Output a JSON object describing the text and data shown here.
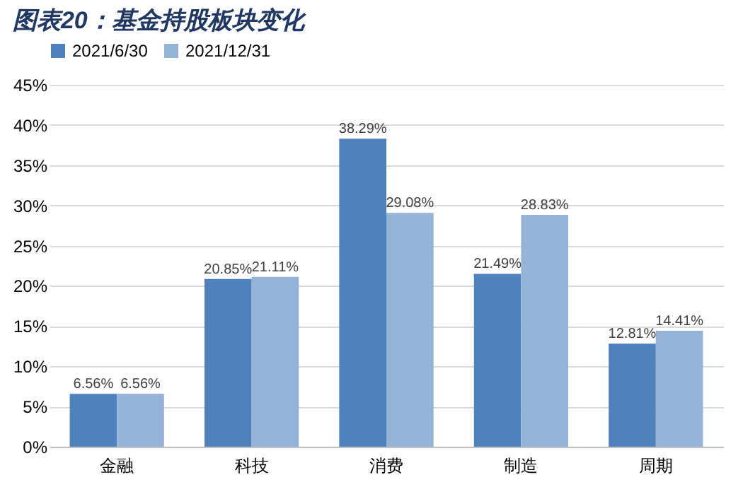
{
  "chart_data": {
    "type": "bar",
    "title": "图表20：基金持股板块变化",
    "categories": [
      "金融",
      "科技",
      "消费",
      "制造",
      "周期"
    ],
    "series": [
      {
        "name": "2021/6/30",
        "color": "#4f81bd",
        "values": [
          6.56,
          20.85,
          38.29,
          21.49,
          12.81
        ],
        "value_labels": [
          "6.56%",
          "20.85%",
          "38.29%",
          "21.49%",
          "12.81%"
        ]
      },
      {
        "name": "2021/12/31",
        "color": "#95b3d7",
        "values": [
          6.56,
          21.11,
          29.08,
          28.83,
          14.41
        ],
        "value_labels": [
          "6.56%",
          "21.11%",
          "29.08%",
          "28.83%",
          "14.41%"
        ]
      }
    ],
    "ylim": [
      0,
      45
    ],
    "yticks": [
      {
        "value": 0,
        "label": "0%"
      },
      {
        "value": 5,
        "label": "5%"
      },
      {
        "value": 10,
        "label": "10%"
      },
      {
        "value": 15,
        "label": "15%"
      },
      {
        "value": 20,
        "label": "20%"
      },
      {
        "value": 25,
        "label": "25%"
      },
      {
        "value": 30,
        "label": "30%"
      },
      {
        "value": 35,
        "label": "35%"
      },
      {
        "value": 40,
        "label": "40%"
      },
      {
        "value": 45,
        "label": "45%"
      }
    ],
    "grid": "y",
    "legend": "top"
  }
}
